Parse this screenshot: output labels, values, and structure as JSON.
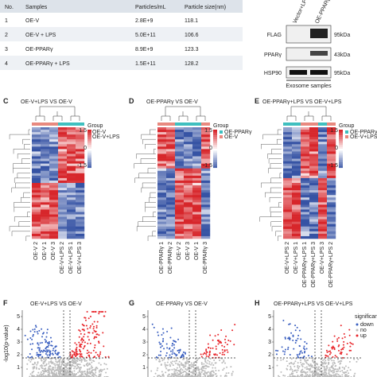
{
  "table": {
    "header": [
      "No.",
      "Samples",
      "Particles/mL",
      "Particle size(nm)"
    ],
    "rows": [
      [
        "1",
        "OE-V",
        "2.8E+9",
        "118.1"
      ],
      [
        "2",
        "OE-V + LPS",
        "5.0E+11",
        "106.6"
      ],
      [
        "3",
        "OE-PPARγ",
        "8.9E+9",
        "123.3"
      ],
      [
        "4",
        "OE-PPARγ + LPS",
        "1.5E+11",
        "128.2"
      ]
    ]
  },
  "blot": {
    "lanes": [
      "Vector+LPS",
      "OE-PPARγ"
    ],
    "rows": [
      "FLAG",
      "PPARγ",
      "HSP90"
    ],
    "markers": [
      "95kDa",
      "43kDa",
      "95kDa"
    ],
    "caption": "Exosome samples"
  },
  "heatmaps": [
    {
      "panel": "C",
      "title": "OE-V+LPS VS OE-V",
      "legend_title": "Group",
      "groups": [
        "OE-V",
        "OE-V+LPS"
      ],
      "scale": [
        "1.5",
        "0",
        "-1.5"
      ],
      "columns": [
        "OE-V 2",
        "OE-V 1",
        "OE-V 3",
        "OE-V+LPS 2",
        "OE-V+LPS 1",
        "OE-V+LPS 3"
      ]
    },
    {
      "panel": "D",
      "title": "OE-PPARγ VS OE-V",
      "legend_title": "Group",
      "groups": [
        "OE-PPARγ",
        "OE-V"
      ],
      "scale": [
        "1.5",
        "0",
        "-1.5"
      ],
      "columns": [
        "OE-PPARγ 1",
        "OE-PPARγ 2",
        "OE-V 2",
        "OE-V 3",
        "OE-V 1",
        "OE-PPARγ 3"
      ]
    },
    {
      "panel": "E",
      "title": "OE-PPARγ+LPS VS OE-V+LPS",
      "legend_title": "Group",
      "groups": [
        "OE-PPARγ+LPS",
        "OE-V+LPS"
      ],
      "scale": [
        "1.5",
        "0",
        "-1.5"
      ],
      "columns": [
        "OE-V+LPS 2",
        "OE-V+LPS 1",
        "OE-PPARγ+LPS 1",
        "OE-PPARγ+LPS 3",
        "OE-V+LPS 3",
        "OE-PPARγ+LPS 2"
      ]
    }
  ],
  "volcanos": [
    {
      "panel": "F",
      "title": "OE-V+LPS VS OE-V",
      "ylabel": "-log10(p-value)",
      "yticks": [
        "5",
        "4",
        "3",
        "2",
        "1"
      ]
    },
    {
      "panel": "G",
      "title": "OE-PPARγ VS OE-V",
      "ylabel": "",
      "yticks": [
        "5",
        "4",
        "3",
        "2",
        "1"
      ]
    },
    {
      "panel": "H",
      "title": "OE-PPARγ+LPS VS OE-V+LPS",
      "ylabel": "",
      "yticks": [
        "5",
        "4",
        "3",
        "2",
        "1"
      ]
    }
  ],
  "volcano_legend": {
    "title": "significant",
    "items": [
      "down",
      "no",
      "up"
    ]
  }
}
